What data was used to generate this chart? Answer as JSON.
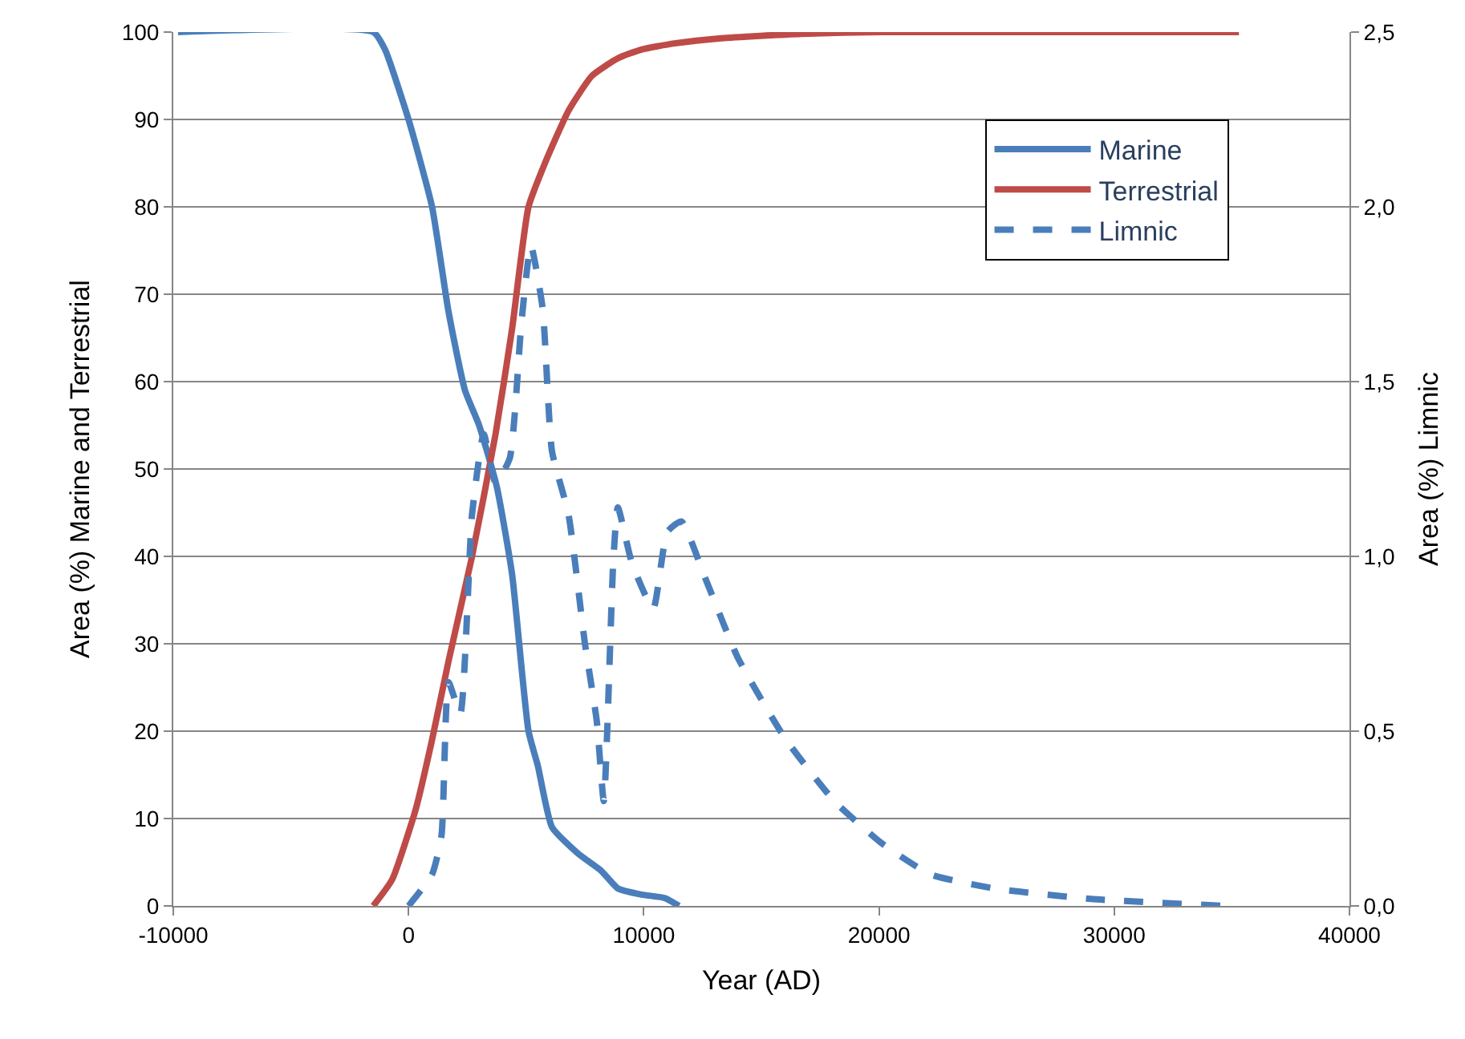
{
  "chart_data": {
    "type": "line",
    "xlabel": "Year (AD)",
    "ylabel": "Area (%) Marine and Terrestrial",
    "y2label": "Area (%) Limnic",
    "xlim": [
      -10000,
      40000
    ],
    "xticks": [
      -10000,
      0,
      10000,
      20000,
      30000,
      40000
    ],
    "ylim": [
      0,
      100
    ],
    "yticks": [
      0,
      10,
      20,
      30,
      40,
      50,
      60,
      70,
      80,
      90,
      100
    ],
    "y2lim": [
      0,
      2.5
    ],
    "y2ticks": [
      {
        "value": 0,
        "label": "0,0"
      },
      {
        "value": 0.5,
        "label": "0,5"
      },
      {
        "value": 1,
        "label": "1,0"
      },
      {
        "value": 1.5,
        "label": "1,5"
      },
      {
        "value": 2,
        "label": "2,0"
      },
      {
        "value": 2.5,
        "label": "2,5"
      }
    ],
    "grid": "y",
    "legend": "top right",
    "marker": "none",
    "series": [
      {
        "name": "Marine",
        "color": "#4a7ebb",
        "line_style": "solid",
        "x": [
          -9800,
          -1500,
          -1000,
          0,
          1000,
          1700,
          2400,
          3000,
          3750,
          4400,
          5100,
          5500,
          6100,
          7200,
          8200,
          8900,
          9900,
          10900,
          11500
        ],
        "values": [
          100,
          100,
          98,
          90,
          80,
          68,
          59,
          55,
          48,
          38,
          20,
          16,
          9,
          6,
          4,
          2,
          1.3,
          0.9,
          0
        ]
      },
      {
        "name": "Terrestrial",
        "color": "#be4b48",
        "line_style": "solid",
        "x": [
          -1500,
          -700,
          300,
          1000,
          1700,
          2700,
          3700,
          4400,
          5100,
          5800,
          6800,
          7800,
          8900,
          9900,
          11300,
          13300,
          16700,
          20100,
          35300
        ],
        "values": [
          0,
          3,
          11,
          19,
          28,
          40,
          54,
          66,
          80,
          85,
          91,
          95,
          97,
          98,
          98.7,
          99.3,
          99.8,
          100,
          100
        ]
      },
      {
        "name": "Limnic",
        "color": "#4a7ebb",
        "line_style": "dashed",
        "axis": "y2",
        "x": [
          0,
          1000,
          1400,
          1700,
          2200,
          2700,
          3200,
          3700,
          4300,
          4800,
          5200,
          5700,
          6100,
          6800,
          7500,
          8000,
          8300,
          8700,
          8900,
          9500,
          10400,
          11000,
          11600,
          12600,
          14000,
          16000,
          18100,
          20100,
          22200,
          24900,
          29000,
          34700
        ],
        "values": [
          0,
          0.09,
          0.2,
          0.64,
          0.55,
          1.12,
          1.35,
          1.21,
          1.28,
          1.67,
          1.89,
          1.71,
          1.3,
          1.12,
          0.75,
          0.53,
          0.3,
          0.98,
          1.14,
          0.98,
          0.85,
          1.07,
          1.1,
          0.94,
          0.71,
          0.48,
          0.3,
          0.18,
          0.09,
          0.05,
          0.02,
          0
        ]
      }
    ]
  }
}
